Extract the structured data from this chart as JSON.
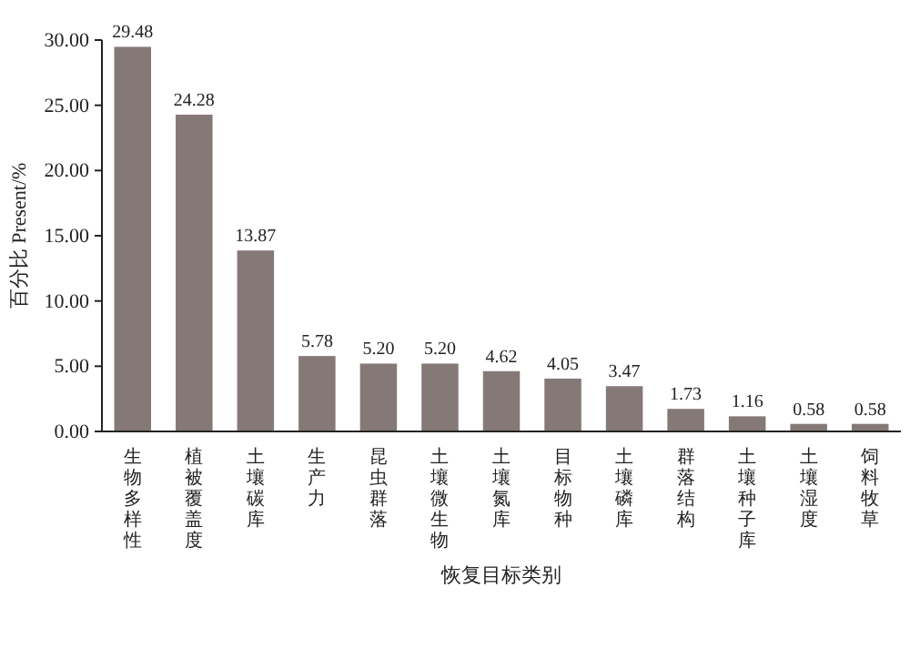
{
  "chart_data": {
    "type": "bar",
    "ylabel": "百分比 Present/%",
    "xlabel": "恢复目标类别",
    "categories": [
      "生物多样性",
      "植被覆盖度",
      "土壤碳库",
      "生产力",
      "昆虫群落",
      "土壤微生物",
      "土壤氮库",
      "目标物种",
      "土壤磷库",
      "群落结构",
      "土壤种子库",
      "土壤湿度",
      "饲料牧草"
    ],
    "values": [
      29.48,
      24.28,
      13.87,
      5.78,
      5.2,
      5.2,
      4.62,
      4.05,
      3.47,
      1.73,
      1.16,
      0.58,
      0.58
    ],
    "value_labels": [
      "29.48",
      "24.28",
      "13.87",
      "5.78",
      "5.20",
      "5.20",
      "4.62",
      "4.05",
      "3.47",
      "1.73",
      "1.16",
      "0.58",
      "0.58"
    ],
    "color": "#857977",
    "ylim": [
      0,
      30
    ],
    "yticks": [
      {
        "value": 0,
        "label": "0.00"
      },
      {
        "value": 5,
        "label": "5.00"
      },
      {
        "value": 10,
        "label": "10.00"
      },
      {
        "value": 15,
        "label": "15.00"
      },
      {
        "value": 20,
        "label": "20.00"
      },
      {
        "value": 25,
        "label": "25.00"
      },
      {
        "value": 30,
        "label": "30.00"
      }
    ],
    "grid": false
  }
}
